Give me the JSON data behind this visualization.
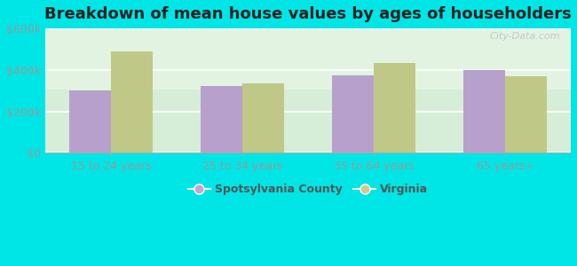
{
  "title": "Breakdown of mean house values by ages of householders",
  "categories": [
    "15 to 24 years",
    "25 to 34 years",
    "35 to 64 years",
    "65 years+"
  ],
  "spotsylvania": [
    300000,
    320000,
    375000,
    400000
  ],
  "virginia": [
    490000,
    335000,
    435000,
    370000
  ],
  "bar_color_spots": "#b8a0cc",
  "bar_color_va": "#c0c888",
  "background_color": "#00e5e5",
  "plot_bg_top": "#e8f5e8",
  "plot_bg_bottom": "#d0e8d0",
  "ylim": [
    0,
    600000
  ],
  "yticks": [
    0,
    200000,
    400000,
    600000
  ],
  "ytick_labels": [
    "$0",
    "$200k",
    "$400k",
    "$600k"
  ],
  "legend_spots": "Spotsylvania County",
  "legend_va": "Virginia",
  "legend_spot_color": "#c9a0d8",
  "legend_va_color": "#d0cc88",
  "watermark": "City-Data.com",
  "title_fontsize": 13,
  "tick_fontsize": 9,
  "legend_fontsize": 9,
  "bar_width": 0.32
}
